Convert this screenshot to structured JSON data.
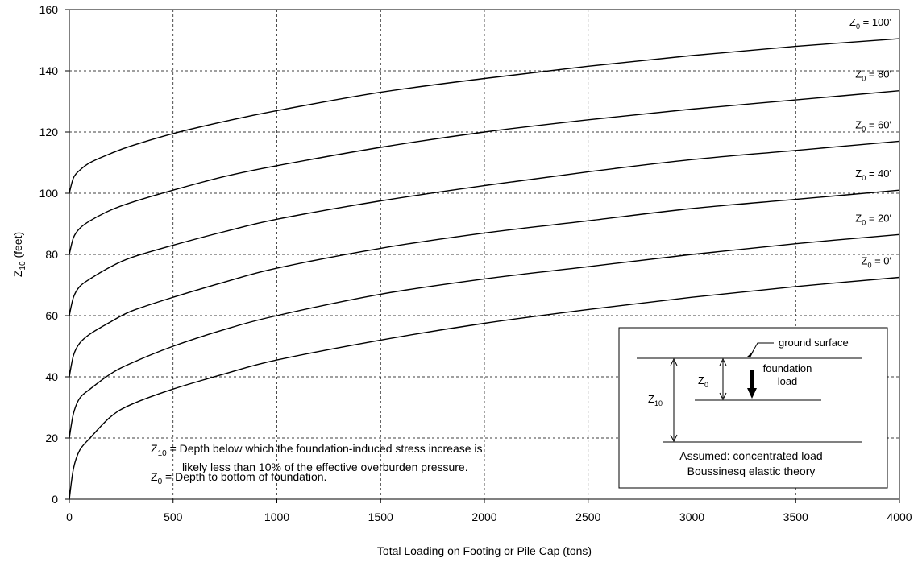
{
  "chart_data": {
    "type": "line",
    "title": "",
    "xlabel": "Total Loading on Footing or Pile Cap (tons)",
    "ylabel_main": "Z",
    "ylabel_sub": "10",
    "ylabel_rest": " (feet)",
    "xlim": [
      0,
      4000
    ],
    "ylim": [
      0,
      160
    ],
    "x_ticks": [
      "0",
      "500",
      "1000",
      "1500",
      "2000",
      "2500",
      "3000",
      "3500",
      "4000"
    ],
    "y_ticks": [
      "0",
      "20",
      "40",
      "60",
      "80",
      "100",
      "120",
      "140",
      "160"
    ],
    "grid": true,
    "x": [
      0,
      20,
      50,
      100,
      200,
      300,
      500,
      750,
      1000,
      1500,
      2000,
      2500,
      3000,
      3500,
      4000
    ],
    "series": [
      {
        "z0": 0,
        "label_main": "Z",
        "label_sub": "0",
        "label_rest": " = 0'",
        "values": [
          0,
          10,
          16,
          20,
          27,
          31,
          36,
          41,
          45.5,
          52,
          57.5,
          62,
          66,
          69.5,
          72.5
        ]
      },
      {
        "z0": 20,
        "label_main": "Z",
        "label_sub": "0",
        "label_rest": " = 20'",
        "values": [
          20,
          28,
          33,
          36,
          41,
          44.5,
          50,
          55.5,
          60,
          67,
          72,
          76,
          80,
          83.5,
          86.5
        ]
      },
      {
        "z0": 40,
        "label_main": "Z",
        "label_sub": "0",
        "label_rest": " = 40'",
        "values": [
          40,
          47,
          51,
          54,
          58,
          61.5,
          66,
          71,
          75.5,
          82,
          87,
          91,
          95,
          98,
          101
        ]
      },
      {
        "z0": 60,
        "label_main": "Z",
        "label_sub": "0",
        "label_rest": " = 60'",
        "values": [
          60,
          66,
          69.5,
          72,
          76,
          79,
          83,
          87.5,
          91.5,
          97.5,
          102.5,
          107,
          111,
          114,
          117
        ]
      },
      {
        "z0": 80,
        "label_main": "Z",
        "label_sub": "0",
        "label_rest": " = 80'",
        "values": [
          80,
          85.5,
          88.5,
          91,
          94.5,
          97,
          101,
          105.5,
          109,
          115,
          120,
          124,
          127.5,
          130.5,
          133.5
        ]
      },
      {
        "z0": 100,
        "label_main": "Z",
        "label_sub": "0",
        "label_rest": " = 100'",
        "values": [
          100,
          105,
          107.5,
          110,
          113,
          115.5,
          119.5,
          123.5,
          127,
          133,
          137.5,
          141.5,
          145,
          148,
          150.5
        ]
      }
    ],
    "notes": {
      "z10_main": "Z",
      "z10_sub": "10",
      "z10_line1": " = Depth below which the foundation-induced stress increase is",
      "z10_line2": "likely less than 10% of the effective overburden pressure.",
      "z0_main": "Z",
      "z0_sub": "0",
      "z0_line": " = Depth to bottom of foundation."
    },
    "inset": {
      "ground_surface": "ground surface",
      "foundation": "foundation",
      "load": "load",
      "z0_main": "Z",
      "z0_sub": "0",
      "z10_main": "Z",
      "z10_sub": "10",
      "assumed": "Assumed: concentrated load",
      "theory": "Boussinesq elastic theory"
    }
  }
}
